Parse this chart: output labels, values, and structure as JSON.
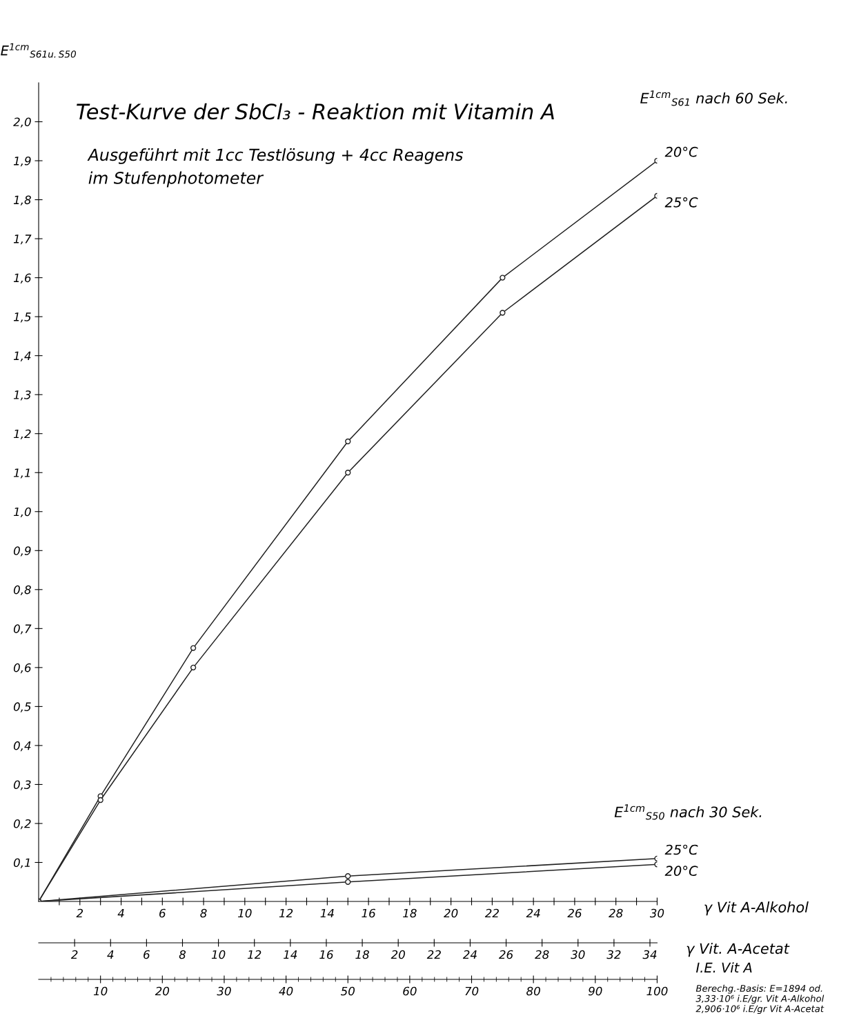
{
  "chart_data": {
    "type": "line",
    "title": "Test-Kurve der SbCl₃ - Reaktion mit Vitamin A",
    "subtitle": "Ausgeführt mit 1cc Testlösung + 4cc Reagens\nim Stufenphotometer",
    "ylabel": "E$^{1cm}$$_{S61u.S50}$",
    "xlabel": "γ Vit A-Alkohol",
    "x2label": "γ Vit. A-Acetat",
    "series": [
      {
        "name": "20°C",
        "color": "#222222",
        "x": [
          0,
          3,
          7.5,
          15,
          22.5,
          30
        ],
        "values": [
          0,
          0.27,
          0.65,
          1.18,
          1.6,
          1.9
        ]
      },
      {
        "name": "25°C",
        "color": "#222222",
        "x": [
          0,
          3,
          7.5,
          15,
          22.5,
          30
        ],
        "values": [
          0,
          0.26,
          0.6,
          1.1,
          1.51,
          1.81
        ]
      },
      {
        "name": "25°C",
        "color": "#222222",
        "x": [
          0,
          15,
          30
        ],
        "values": [
          0,
          0.065,
          0.11
        ]
      },
      {
        "name": "20°C",
        "color": "#222222",
        "x": [
          0,
          15,
          30
        ],
        "values": [
          0,
          0.05,
          0.095
        ]
      }
    ],
    "marker": "circle",
    "line_style": "solid",
    "grid": false,
    "xlim": [
      0,
      30
    ],
    "xticks": [
      {
        "value": 1,
        "label": null
      },
      2,
      {
        "value": 3,
        "label": null
      },
      4,
      {
        "value": 5,
        "label": null
      },
      6,
      {
        "value": 7,
        "label": null
      },
      8,
      {
        "value": 9,
        "label": null
      },
      10,
      {
        "value": 11,
        "label": null
      },
      12,
      {
        "value": 13,
        "label": null
      },
      14,
      {
        "value": 15,
        "label": null
      },
      16,
      {
        "value": 17,
        "label": null
      },
      18,
      {
        "value": 19,
        "label": null
      },
      20,
      {
        "value": 21,
        "label": null
      },
      22,
      {
        "value": 23,
        "label": null
      },
      24,
      {
        "value": 25,
        "label": null
      },
      26,
      {
        "value": 27,
        "label": null
      },
      28,
      {
        "value": 29,
        "label": null
      },
      30
    ],
    "x2lim": [
      0,
      34.4
    ],
    "x2ticks": [
      2,
      4,
      6,
      8,
      10,
      12,
      14,
      16,
      18,
      20,
      22,
      24,
      26,
      28,
      30,
      32,
      34
    ],
    "ylim": [
      0,
      2.1
    ],
    "yticks": [
      {
        "value": 0.1,
        "label": "0,1"
      },
      {
        "value": 0.2,
        "label": "0,2"
      },
      {
        "value": 0.3,
        "label": "0,3"
      },
      {
        "value": 0.4,
        "label": "0,4"
      },
      {
        "value": 0.5,
        "label": "0,5"
      },
      {
        "value": 0.6,
        "label": "0,6"
      },
      {
        "value": 0.7,
        "label": "0,7"
      },
      {
        "value": 0.8,
        "label": "0,8"
      },
      {
        "value": 0.9,
        "label": "0,9"
      },
      {
        "value": 1.0,
        "label": "1,0"
      },
      {
        "value": 1.1,
        "label": "1,1"
      },
      {
        "value": 1.2,
        "label": "1,2"
      },
      {
        "value": 1.3,
        "label": "1,3"
      },
      {
        "value": 1.4,
        "label": "1,4"
      },
      {
        "value": 1.5,
        "label": "1,5"
      },
      {
        "value": 1.6,
        "label": "1,6"
      },
      {
        "value": 1.7,
        "label": "1,7"
      },
      {
        "value": 1.8,
        "label": "1,8"
      },
      {
        "value": 1.9,
        "label": "1,9"
      },
      {
        "value": 2.0,
        "label": "2,0"
      }
    ],
    "annotations": [
      "E$^{1cm}$$_{S61}$ nach 60 Sek.",
      "E$^{1cm}$$_{S50}$ nach 30 Sek.",
      "Berechg.-Basis: E=1894 od.\n3,33·10⁶ i.E/gr. Vit A-Alkohol\n2,906·10⁶ i.E/gr Vit A-Acetat",
      "I.E. Vit A",
      "10",
      "20",
      "30",
      "40",
      "50",
      "60",
      "70",
      "80",
      "90",
      "100"
    ]
  }
}
